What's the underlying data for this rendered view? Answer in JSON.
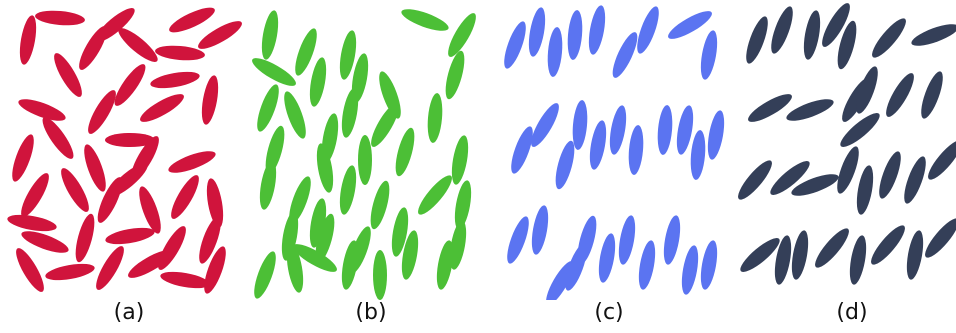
{
  "panels": [
    {
      "id": "a",
      "label": "(a)",
      "color": "#d0143c"
    },
    {
      "id": "b",
      "label": "(b)",
      "color": "#4cbf36"
    },
    {
      "id": "c",
      "label": "(c)",
      "color": "#5b74f1"
    },
    {
      "id": "d",
      "label": "(d)",
      "color": "#343f58"
    }
  ]
}
